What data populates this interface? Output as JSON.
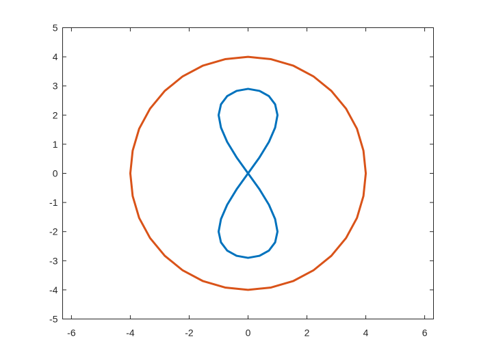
{
  "chart_data": {
    "type": "line",
    "title": "",
    "xlabel": "",
    "ylabel": "",
    "xlim": [
      -6.3,
      6.3
    ],
    "ylim": [
      -5,
      5
    ],
    "xticks": [
      -6,
      -4,
      -2,
      0,
      2,
      4,
      6
    ],
    "yticks": [
      -5,
      -4,
      -3,
      -2,
      -1,
      0,
      1,
      2,
      3,
      4,
      5
    ],
    "xtick_labels": [
      "-6",
      "-4",
      "-2",
      "0",
      "2",
      "4",
      "6"
    ],
    "ytick_labels": [
      "-5",
      "-4",
      "-3",
      "-2",
      "-1",
      "0",
      "1",
      "2",
      "3",
      "4",
      "5"
    ],
    "grid": false,
    "box": true,
    "series": [
      {
        "color": "#0072BD",
        "x": [
          0.0,
          0.39,
          0.71,
          0.92,
          1.0,
          0.92,
          0.71,
          0.39,
          0.0,
          -0.39,
          -0.71,
          -0.92,
          -1.0,
          -0.92,
          -0.71,
          -0.39,
          0.0,
          0.39,
          0.71,
          0.92,
          1.0,
          0.92,
          0.71,
          0.39,
          0.0,
          -0.39,
          -0.71,
          -0.92,
          -1.0,
          -0.92,
          -0.71,
          -0.39,
          0.0
        ],
        "y": [
          0.0,
          0.55,
          1.08,
          1.57,
          2.0,
          2.37,
          2.65,
          2.83,
          2.9,
          2.83,
          2.65,
          2.37,
          2.0,
          1.57,
          1.08,
          0.55,
          0.0,
          -0.55,
          -1.08,
          -1.57,
          -2.0,
          -2.37,
          -2.65,
          -2.83,
          -2.9,
          -2.83,
          -2.65,
          -2.37,
          -2.0,
          -1.57,
          -1.08,
          -0.55,
          0.0
        ]
      },
      {
        "color": "#D95319",
        "x": [
          4.0,
          3.92,
          3.7,
          3.33,
          2.83,
          2.22,
          1.53,
          0.78,
          0.0,
          -0.78,
          -1.53,
          -2.22,
          -2.83,
          -3.33,
          -3.7,
          -3.92,
          -4.0,
          -3.92,
          -3.7,
          -3.33,
          -2.83,
          -2.22,
          -1.53,
          -0.78,
          0.0,
          0.78,
          1.53,
          2.22,
          2.83,
          3.33,
          3.7,
          3.92,
          4.0
        ],
        "y": [
          0.0,
          0.78,
          1.53,
          2.22,
          2.83,
          3.33,
          3.7,
          3.92,
          4.0,
          3.92,
          3.7,
          3.33,
          2.83,
          2.22,
          1.53,
          0.78,
          0.0,
          -0.78,
          -1.53,
          -2.22,
          -2.83,
          -3.33,
          -3.7,
          -3.92,
          -4.0,
          -3.92,
          -3.7,
          -3.33,
          -2.83,
          -2.22,
          -1.53,
          -0.78,
          0.0
        ]
      }
    ]
  }
}
